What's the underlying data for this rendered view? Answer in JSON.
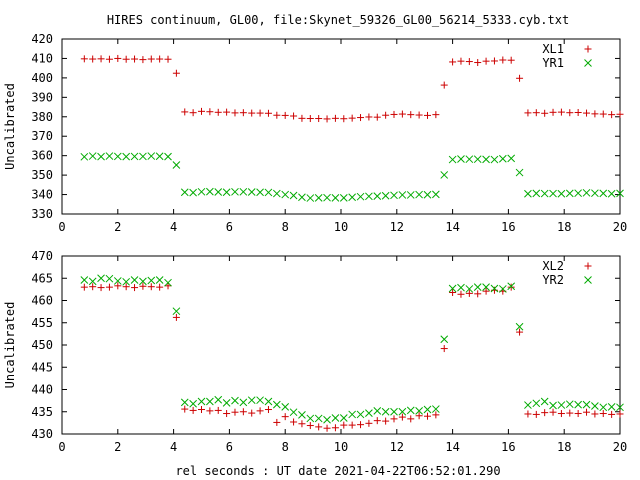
{
  "figure": {
    "title": "HIRES continuum, GL00, file:Skynet_59326_GL00_56214_5333.cyb.txt",
    "xlabel": "rel seconds : UT date 2021-04-22T06:52:01.290"
  },
  "chart_data": [
    {
      "type": "scatter",
      "ylabel": "Uncalibrated",
      "xlim": [
        0,
        20
      ],
      "ylim": [
        330,
        420
      ],
      "xticks": [
        0,
        2,
        4,
        6,
        8,
        10,
        12,
        14,
        16,
        18,
        20
      ],
      "yticks": [
        330,
        340,
        350,
        360,
        370,
        380,
        390,
        400,
        410,
        420
      ],
      "legend_position": "top-right",
      "x": [
        0.8,
        1.1,
        1.4,
        1.7,
        2.0,
        2.3,
        2.6,
        2.9,
        3.2,
        3.5,
        3.8,
        4.1,
        4.4,
        4.7,
        5.0,
        5.3,
        5.6,
        5.9,
        6.2,
        6.5,
        6.8,
        7.1,
        7.4,
        7.7,
        8.0,
        8.3,
        8.6,
        8.9,
        9.2,
        9.5,
        9.8,
        10.1,
        10.4,
        10.7,
        11.0,
        11.3,
        11.6,
        11.9,
        12.2,
        12.5,
        12.8,
        13.1,
        13.4,
        13.7,
        14.0,
        14.3,
        14.6,
        14.9,
        15.2,
        15.5,
        15.8,
        16.1,
        16.4,
        16.7,
        17.0,
        17.3,
        17.6,
        17.9,
        18.2,
        18.5,
        18.8,
        19.1,
        19.4,
        19.7,
        20.0
      ],
      "series": [
        {
          "name": "XL1",
          "marker": "plus",
          "color": "#cc0000",
          "values": [
            409.8,
            409.7,
            409.8,
            409.6,
            410.0,
            409.6,
            409.7,
            409.4,
            409.7,
            409.7,
            409.6,
            402.4,
            382.5,
            382.1,
            382.8,
            382.6,
            382.3,
            382.4,
            382.0,
            382.1,
            381.9,
            381.9,
            381.8,
            380.8,
            380.7,
            380.4,
            379.2,
            379.1,
            379.1,
            378.9,
            379.2,
            379.0,
            379.3,
            379.6,
            379.9,
            379.8,
            380.8,
            381.2,
            381.4,
            381.1,
            380.9,
            380.7,
            381.1,
            396.3,
            408.2,
            408.6,
            408.4,
            407.9,
            408.6,
            408.7,
            409.2,
            409.1,
            399.8,
            382.0,
            382.1,
            381.8,
            382.3,
            382.4,
            382.1,
            382.2,
            381.9,
            381.5,
            381.4,
            381.1,
            381.3
          ]
        },
        {
          "name": "YR1",
          "marker": "cross",
          "color": "#00aa00",
          "values": [
            359.4,
            359.8,
            359.5,
            359.8,
            359.6,
            359.5,
            359.6,
            359.6,
            359.8,
            359.7,
            359.5,
            355.2,
            341.2,
            341.0,
            341.4,
            341.5,
            341.3,
            341.2,
            341.4,
            341.4,
            341.3,
            341.2,
            341.1,
            340.5,
            340.0,
            339.5,
            338.6,
            338.2,
            338.3,
            338.4,
            338.3,
            338.3,
            338.6,
            338.9,
            339.1,
            339.2,
            339.4,
            339.6,
            339.8,
            339.8,
            340.0,
            339.9,
            340.1,
            350.1,
            358.0,
            358.3,
            358.2,
            358.2,
            358.1,
            358.0,
            358.4,
            358.6,
            351.3,
            340.4,
            340.6,
            340.5,
            340.5,
            340.4,
            340.6,
            340.7,
            340.9,
            340.7,
            340.6,
            340.4,
            340.6
          ]
        }
      ]
    },
    {
      "type": "scatter",
      "ylabel": "Uncalibrated",
      "xlim": [
        0,
        20
      ],
      "ylim": [
        430,
        470
      ],
      "xticks": [
        0,
        2,
        4,
        6,
        8,
        10,
        12,
        14,
        16,
        18,
        20
      ],
      "yticks": [
        430,
        435,
        440,
        445,
        450,
        455,
        460,
        465,
        470
      ],
      "legend_position": "top-right",
      "x": [
        0.8,
        1.1,
        1.4,
        1.7,
        2.0,
        2.3,
        2.6,
        2.9,
        3.2,
        3.5,
        3.8,
        4.1,
        4.4,
        4.7,
        5.0,
        5.3,
        5.6,
        5.9,
        6.2,
        6.5,
        6.8,
        7.1,
        7.4,
        7.7,
        8.0,
        8.3,
        8.6,
        8.9,
        9.2,
        9.5,
        9.8,
        10.1,
        10.4,
        10.7,
        11.0,
        11.3,
        11.6,
        11.9,
        12.2,
        12.5,
        12.8,
        13.1,
        13.4,
        13.7,
        14.0,
        14.3,
        14.6,
        14.9,
        15.2,
        15.5,
        15.8,
        16.1,
        16.4,
        16.7,
        17.0,
        17.3,
        17.6,
        17.9,
        18.2,
        18.5,
        18.8,
        19.1,
        19.4,
        19.7,
        20.0
      ],
      "series": [
        {
          "name": "XL2",
          "marker": "plus",
          "color": "#cc0000",
          "values": [
            463.0,
            463.1,
            462.9,
            463.0,
            463.3,
            463.1,
            462.9,
            463.2,
            463.1,
            463.0,
            463.3,
            456.2,
            435.6,
            435.3,
            435.5,
            435.2,
            435.3,
            434.6,
            434.9,
            435.0,
            434.7,
            435.2,
            435.5,
            432.6,
            433.9,
            432.7,
            432.3,
            431.9,
            431.6,
            431.3,
            431.4,
            432.0,
            432.0,
            432.1,
            432.4,
            433.0,
            432.9,
            433.4,
            433.8,
            433.4,
            434.1,
            434.0,
            434.3,
            449.2,
            461.8,
            461.4,
            461.6,
            461.5,
            462.1,
            462.3,
            462.1,
            463.0,
            452.9,
            434.5,
            434.4,
            434.8,
            434.9,
            434.6,
            434.7,
            434.6,
            434.9,
            434.5,
            434.6,
            434.4,
            434.5
          ]
        },
        {
          "name": "YR2",
          "marker": "cross",
          "color": "#00aa00",
          "values": [
            464.6,
            464.3,
            465.0,
            464.9,
            464.4,
            464.2,
            464.6,
            464.3,
            464.5,
            464.6,
            464.0,
            457.6,
            437.1,
            436.8,
            437.3,
            437.3,
            437.7,
            437.0,
            437.5,
            437.1,
            437.6,
            437.6,
            437.3,
            436.6,
            436.1,
            434.9,
            434.3,
            433.5,
            433.5,
            433.2,
            433.6,
            433.6,
            434.4,
            434.4,
            434.7,
            435.2,
            435.0,
            435.0,
            435.0,
            435.3,
            435.2,
            435.5,
            435.6,
            451.3,
            462.7,
            462.9,
            462.6,
            463.0,
            463.0,
            462.7,
            462.6,
            463.2,
            454.1,
            436.5,
            436.9,
            437.3,
            436.4,
            436.5,
            436.7,
            436.6,
            436.6,
            436.3,
            436.0,
            436.1,
            436.0
          ]
        }
      ]
    }
  ]
}
